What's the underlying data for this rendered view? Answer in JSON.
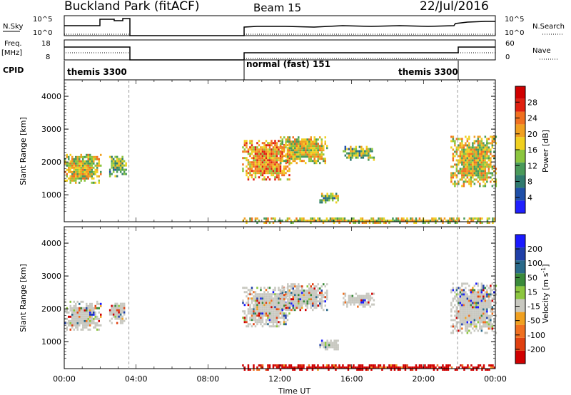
{
  "header": {
    "title": "Buckland Park (fitACF)",
    "beam": "Beam 15",
    "date": "22/Jul/2016"
  },
  "top_panels": {
    "nsky_label": "N.Sky",
    "nsearch_label": "N.Search",
    "freq_label": "Freq.",
    "freq_unit": "[MHz]",
    "nave_label": "Nave",
    "cpid_label": "CPID",
    "nsky_ticks": [
      "10^5",
      "10^0"
    ],
    "nsearch_ticks": [
      "10^5",
      "10^0"
    ],
    "freq_ticks": [
      "18",
      "8"
    ],
    "nave_ticks": [
      "60",
      "0"
    ],
    "modes": [
      {
        "label": "themis 3300",
        "start": 0,
        "end": 3.6
      },
      {
        "label": "normal (fast) 151",
        "start": 9.9,
        "end": 21.9
      },
      {
        "label": "themis 3300",
        "start": 21.9,
        "end": 24
      }
    ]
  },
  "colors": {
    "power_cb": [
      "#2020ff",
      "#1f4fa8",
      "#2f7a6e",
      "#4a9a5a",
      "#8cc63f",
      "#f0d020",
      "#f0a020",
      "#f07020",
      "#e02010",
      "#d00000"
    ],
    "vel_cb": [
      "#d00000",
      "#e04010",
      "#f07020",
      "#f0a020",
      "#c8c8c0",
      "#8cc63f",
      "#3a8a3a",
      "#2a6a8a",
      "#1f3fa8",
      "#1a1aff"
    ]
  },
  "chart_data": [
    {
      "type": "heatmap",
      "name": "power",
      "ylabel": "Slant Range [km]",
      "xlabel": "Time UT",
      "xticks": [
        "00:00",
        "04:00",
        "08:00",
        "12:00",
        "16:00",
        "20:00",
        "00:00"
      ],
      "xlim_hours": [
        0,
        24
      ],
      "ylim_km": [
        180,
        4500
      ],
      "yticks": [
        "1000",
        "2000",
        "3000",
        "4000"
      ],
      "colorbar": {
        "label": "Power [dB]",
        "ticks": [
          "4",
          "8",
          "12",
          "16",
          "20",
          "24",
          "28"
        ],
        "range": [
          0,
          30
        ]
      },
      "echo_regions": [
        {
          "t0": 0.0,
          "t1": 2.0,
          "r0": 1400,
          "r1": 2250,
          "value": 16
        },
        {
          "t0": 2.5,
          "t1": 3.4,
          "r0": 1600,
          "r1": 2250,
          "value": 12
        },
        {
          "t0": 9.9,
          "t1": 12.5,
          "r0": 1500,
          "r1": 2700,
          "value": 20
        },
        {
          "t0": 12.0,
          "t1": 14.6,
          "r0": 2000,
          "r1": 2800,
          "value": 16
        },
        {
          "t0": 14.2,
          "t1": 15.2,
          "r0": 800,
          "r1": 1100,
          "value": 12
        },
        {
          "t0": 15.5,
          "t1": 17.2,
          "r0": 2100,
          "r1": 2500,
          "value": 12
        },
        {
          "t0": 21.5,
          "t1": 24,
          "r0": 1300,
          "r1": 2800,
          "value": 16
        },
        {
          "t0": 9.9,
          "t1": 24,
          "r0": 180,
          "r1": 320,
          "value": 16
        }
      ]
    },
    {
      "type": "heatmap",
      "name": "velocity",
      "ylabel": "Slant Range [km]",
      "xlabel": "Time UT",
      "xticks": [
        "00:00",
        "04:00",
        "08:00",
        "12:00",
        "16:00",
        "20:00",
        "00:00"
      ],
      "xlim_hours": [
        0,
        24
      ],
      "ylim_km": [
        180,
        4500
      ],
      "yticks": [
        "1000",
        "2000",
        "3000",
        "4000"
      ],
      "colorbar": {
        "label": "Velocity [m s",
        "label_sup": "-1",
        "label_end": "]",
        "ticks": [
          "200",
          "100",
          "50",
          "15",
          "-15",
          "-50",
          "-100",
          "-200"
        ]
      },
      "echo_regions": [
        {
          "t0": 0.0,
          "t1": 2.0,
          "r0": 1400,
          "r1": 2250,
          "value": 0
        },
        {
          "t0": 2.5,
          "t1": 3.4,
          "r0": 1600,
          "r1": 2250,
          "value": 0
        },
        {
          "t0": 9.9,
          "t1": 12.5,
          "r0": 1500,
          "r1": 2700,
          "value": 0
        },
        {
          "t0": 12.0,
          "t1": 14.6,
          "r0": 2000,
          "r1": 2800,
          "value": 0
        },
        {
          "t0": 14.2,
          "t1": 15.2,
          "r0": 800,
          "r1": 1100,
          "value": 0
        },
        {
          "t0": 15.5,
          "t1": 17.2,
          "r0": 2100,
          "r1": 2500,
          "value": 0
        },
        {
          "t0": 21.5,
          "t1": 24,
          "r0": 1300,
          "r1": 2800,
          "value": 0
        },
        {
          "t0": 9.9,
          "t1": 24,
          "r0": 180,
          "r1": 320,
          "value": -200
        }
      ]
    }
  ]
}
